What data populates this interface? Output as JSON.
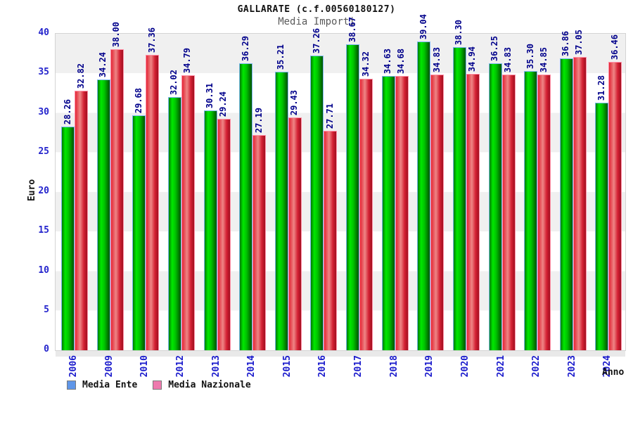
{
  "header": {
    "title": "GALLARATE (c.f.00560180127)",
    "subtitle": "Media Importi"
  },
  "chart_data": {
    "type": "bar",
    "title": "GALLARATE (c.f.00560180127)",
    "subtitle": "Media Importi",
    "xlabel": "Anno",
    "ylabel": "Euro",
    "ylim": [
      0,
      40
    ],
    "ytick_step": 5,
    "yticks": [
      0,
      5,
      10,
      15,
      20,
      25,
      30,
      35,
      40
    ],
    "grid": "alternating-horizontal-bands",
    "legend_position": "bottom-left",
    "categories": [
      "2006",
      "2009",
      "2010",
      "2012",
      "2013",
      "2014",
      "2015",
      "2016",
      "2017",
      "2018",
      "2019",
      "2020",
      "2021",
      "2022",
      "2023",
      "2024"
    ],
    "series": [
      {
        "name": "Media Ente",
        "values": [
          28.26,
          34.24,
          29.68,
          32.02,
          30.31,
          36.29,
          35.21,
          37.26,
          38.67,
          34.63,
          39.04,
          38.3,
          36.25,
          35.3,
          36.86,
          31.28
        ],
        "labels": [
          "28.26",
          "34.24",
          "29.68",
          "32.02",
          "30.31",
          "36.29",
          "35.21",
          "37.26",
          "38.67",
          "34.63",
          "39.04",
          "38.30",
          "36.25",
          "35.30",
          "36.86",
          "31.28"
        ],
        "bar_color": "#00c400",
        "legend_swatch_color": "#5f96e8"
      },
      {
        "name": "Media Nazionale",
        "values": [
          32.82,
          38.0,
          37.36,
          34.79,
          29.24,
          27.19,
          29.43,
          27.71,
          34.32,
          34.68,
          34.83,
          34.94,
          34.83,
          34.85,
          37.05,
          36.46
        ],
        "labels": [
          "32.82",
          "38.00",
          "37.36",
          "34.79",
          "29.24",
          "27.19",
          "29.43",
          "27.71",
          "34.32",
          "34.68",
          "34.83",
          "34.94",
          "34.83",
          "34.85",
          "37.05",
          "36.46"
        ],
        "bar_color": "#d42033",
        "legend_swatch_color": "#ee7aae"
      }
    ],
    "colors": {
      "value_label": "#00008b",
      "axis_tick_label": "#2424cc",
      "band_gray": "#f0f0f0",
      "band_white": "#ffffff",
      "green_bar_border": "#7db9f0",
      "red_bar_border": "#ff8fa6"
    }
  }
}
